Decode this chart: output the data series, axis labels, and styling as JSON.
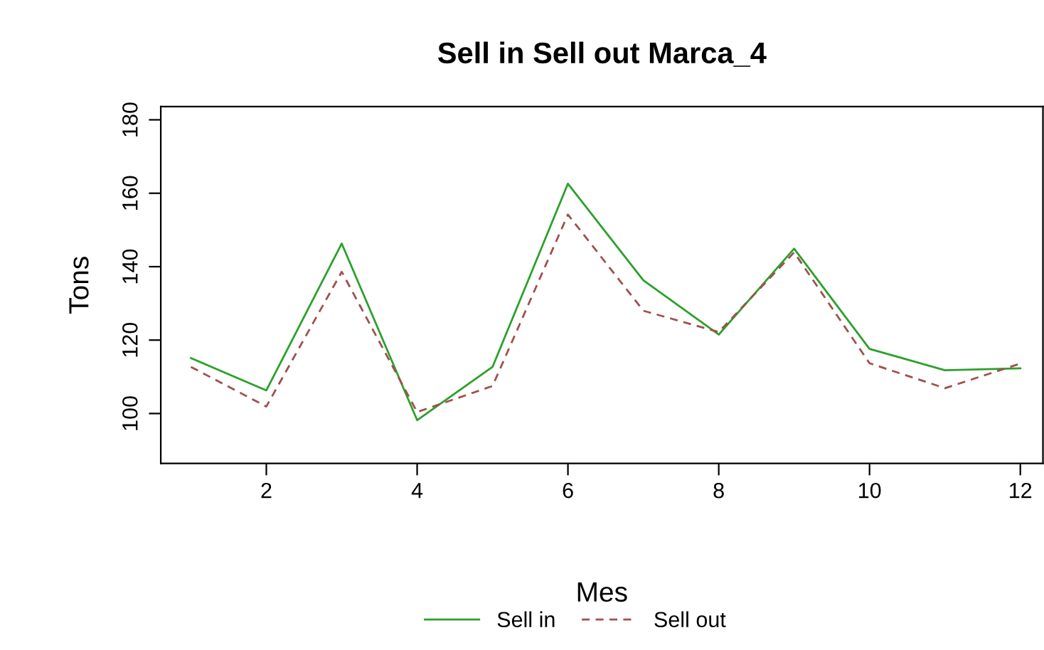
{
  "chart_data": {
    "type": "line",
    "title": "Sell in Sell out Marca_4",
    "xlabel": "Mes",
    "ylabel": "Tons",
    "x": [
      1,
      2,
      3,
      4,
      5,
      6,
      7,
      8,
      9,
      10,
      11,
      12
    ],
    "series": [
      {
        "name": "Sell in",
        "color": "#2ca02c",
        "line_style": "solid",
        "values": [
          115.1,
          106.3,
          146.3,
          98.2,
          112.7,
          162.6,
          136.3,
          121.5,
          144.9,
          117.6,
          111.8,
          112.3
        ]
      },
      {
        "name": "Sell out",
        "color": "#a0504e",
        "line_style": "dashed",
        "values": [
          112.7,
          101.9,
          138.6,
          100.4,
          107.5,
          154.2,
          128.0,
          122.2,
          143.9,
          113.7,
          106.9,
          113.6
        ]
      }
    ],
    "xlim": [
      0.6,
      12.3
    ],
    "ylim": [
      86.4,
      183.6
    ],
    "xticks": [
      2,
      4,
      6,
      8,
      10,
      12
    ],
    "yticks": [
      100,
      120,
      140,
      160,
      180
    ],
    "grid": false,
    "legend": "bottom"
  }
}
